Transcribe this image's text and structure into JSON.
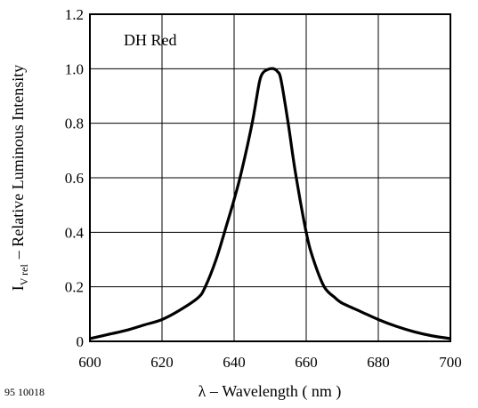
{
  "chart_data": {
    "type": "line",
    "title": "",
    "annotation": "DH Red",
    "xlabel": "λ – Wavelength ( nm )",
    "ylabel_main": "I",
    "ylabel_sub": "V rel",
    "ylabel_rest": "– Relative Luminous Intensity",
    "xlim": [
      600,
      700
    ],
    "ylim": [
      0,
      1.2
    ],
    "grid": true,
    "x_ticks": [
      "600",
      "620",
      "640",
      "660",
      "680",
      "700"
    ],
    "y_ticks": [
      "0",
      "0.2",
      "0.4",
      "0.6",
      "0.8",
      "1.0",
      "1.2"
    ],
    "series": [
      {
        "x": [
          600,
          605,
          610,
          615,
          620,
          625,
          630,
          632,
          635,
          638,
          640,
          642,
          645,
          647,
          648,
          649,
          650,
          651,
          652,
          653,
          655,
          657,
          660,
          662,
          665,
          668,
          670,
          675,
          680,
          685,
          690,
          695,
          700
        ],
        "y": [
          0.01,
          0.025,
          0.04,
          0.06,
          0.08,
          0.115,
          0.16,
          0.2,
          0.3,
          0.43,
          0.52,
          0.62,
          0.8,
          0.95,
          0.985,
          0.995,
          1.0,
          1.0,
          0.99,
          0.96,
          0.8,
          0.62,
          0.4,
          0.3,
          0.2,
          0.16,
          0.14,
          0.11,
          0.08,
          0.055,
          0.035,
          0.02,
          0.01
        ]
      }
    ]
  },
  "footer_code": "95 10018"
}
